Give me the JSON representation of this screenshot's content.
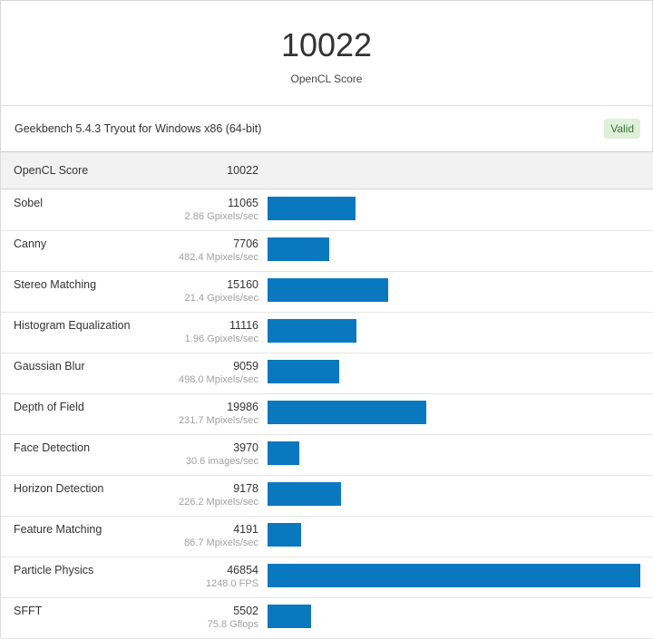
{
  "header": {
    "score": "10022",
    "score_label": "OpenCL Score",
    "version": "Geekbench 5.4.3 Tryout for Windows x86 (64-bit)",
    "status": "Valid"
  },
  "colors": {
    "bar": "#0a78bf",
    "valid_bg": "#dff0d8",
    "valid_text": "#3c763d"
  },
  "chart_data": {
    "type": "bar",
    "orientation": "horizontal",
    "summary": {
      "name": "OpenCL Score",
      "value": "10022"
    },
    "xlim": [
      0,
      46854
    ],
    "rows": [
      {
        "name": "Sobel",
        "score": 11065,
        "rate": "2.86 Gpixels/sec"
      },
      {
        "name": "Canny",
        "score": 7706,
        "rate": "482.4 Mpixels/sec"
      },
      {
        "name": "Stereo Matching",
        "score": 15160,
        "rate": "21.4 Gpixels/sec"
      },
      {
        "name": "Histogram Equalization",
        "score": 11116,
        "rate": "1.96 Gpixels/sec"
      },
      {
        "name": "Gaussian Blur",
        "score": 9059,
        "rate": "498.0 Mpixels/sec"
      },
      {
        "name": "Depth of Field",
        "score": 19986,
        "rate": "231.7 Mpixels/sec"
      },
      {
        "name": "Face Detection",
        "score": 3970,
        "rate": "30.6 images/sec"
      },
      {
        "name": "Horizon Detection",
        "score": 9178,
        "rate": "226.2 Mpixels/sec"
      },
      {
        "name": "Feature Matching",
        "score": 4191,
        "rate": "86.7 Mpixels/sec"
      },
      {
        "name": "Particle Physics",
        "score": 46854,
        "rate": "1248.0 FPS"
      },
      {
        "name": "SFFT",
        "score": 5502,
        "rate": "75.8 Gflops"
      }
    ]
  }
}
